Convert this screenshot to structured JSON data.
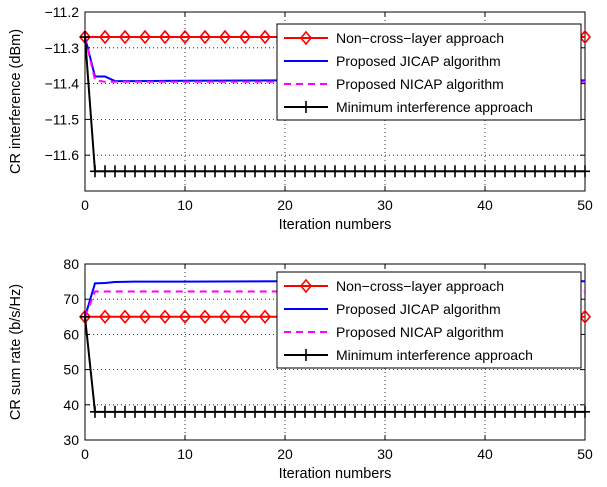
{
  "colors": {
    "non_cross_layer": "#ff0000",
    "jicap": "#0000ff",
    "nicap": "#ff00ff",
    "minimum": "#000000",
    "grid": "#000000"
  },
  "chart_data": [
    {
      "type": "line",
      "xlabel": "Iteration numbers",
      "ylabel": "CR interference (dBm)",
      "xlim": [
        0,
        50
      ],
      "ylim": [
        -11.7,
        -11.2
      ],
      "xticks": [
        0,
        10,
        20,
        30,
        40,
        50
      ],
      "xtick_labels": [
        "0",
        "10",
        "20",
        "30",
        "40",
        "50"
      ],
      "yticks": [
        -11.7,
        -11.6,
        -11.5,
        -11.4,
        -11.3,
        -11.2
      ],
      "ytick_labels": [
        "",
        "−11.6",
        "−11.5",
        "−11.4",
        "−11.3",
        "−11.2"
      ],
      "grid": true,
      "legend_position": "top-right",
      "series": [
        {
          "name": "Non−cross−layer approach",
          "color_key": "non_cross_layer",
          "style": "solid",
          "marker": "diamond",
          "x": [
            0,
            50
          ],
          "y": [
            -11.27,
            -11.27
          ],
          "marker_x": [
            0,
            2,
            4,
            6,
            8,
            10,
            12,
            14,
            16,
            18,
            50
          ]
        },
        {
          "name": "Proposed JICAP algorithm",
          "color_key": "jicap",
          "style": "solid",
          "marker": "none",
          "x": [
            0,
            1,
            2,
            3,
            5,
            10,
            20,
            30,
            40,
            50
          ],
          "y": [
            -11.27,
            -11.38,
            -11.38,
            -11.393,
            -11.393,
            -11.392,
            -11.391,
            -11.391,
            -11.391,
            -11.391
          ]
        },
        {
          "name": "Proposed NICAP algorithm",
          "color_key": "nicap",
          "style": "dashed",
          "marker": "none",
          "x": [
            0,
            1,
            2,
            3,
            50
          ],
          "y": [
            -11.27,
            -11.39,
            -11.395,
            -11.395,
            -11.395
          ]
        },
        {
          "name": "Minimum interference approach",
          "color_key": "minimum",
          "style": "solid",
          "marker": "plus",
          "x": [
            0,
            1,
            50
          ],
          "y": [
            -11.27,
            -11.645,
            -11.645
          ],
          "marker_x": [
            0,
            1,
            2,
            3,
            4,
            5,
            6,
            7,
            8,
            9,
            10,
            11,
            12,
            13,
            14,
            15,
            16,
            17,
            18,
            19,
            20,
            21,
            22,
            23,
            24,
            25,
            26,
            27,
            28,
            29,
            30,
            31,
            32,
            33,
            34,
            35,
            36,
            37,
            38,
            39,
            40,
            41,
            42,
            43,
            44,
            45,
            46,
            47,
            48,
            49,
            50
          ]
        }
      ]
    },
    {
      "type": "line",
      "xlabel": "Iteration numbers",
      "ylabel": "CR sum rate (b/s/Hz)",
      "xlim": [
        0,
        50
      ],
      "ylim": [
        30,
        80
      ],
      "xticks": [
        0,
        10,
        20,
        30,
        40,
        50
      ],
      "xtick_labels": [
        "0",
        "10",
        "20",
        "30",
        "40",
        "50"
      ],
      "yticks": [
        30,
        40,
        50,
        60,
        70,
        80
      ],
      "ytick_labels": [
        "30",
        "40",
        "50",
        "60",
        "70",
        "80"
      ],
      "grid": true,
      "legend_position": "top-right",
      "series": [
        {
          "name": "Non−cross−layer approach",
          "color_key": "non_cross_layer",
          "style": "solid",
          "marker": "diamond",
          "x": [
            0,
            50
          ],
          "y": [
            65,
            65
          ],
          "marker_x": [
            0,
            2,
            4,
            6,
            8,
            10,
            12,
            14,
            16,
            18,
            50
          ]
        },
        {
          "name": "Proposed JICAP algorithm",
          "color_key": "jicap",
          "style": "solid",
          "marker": "none",
          "x": [
            0,
            1,
            2,
            3,
            5,
            10,
            20,
            30,
            40,
            50
          ],
          "y": [
            65,
            74.5,
            74.6,
            74.9,
            75.0,
            75.0,
            75.1,
            75.1,
            75.1,
            75.1
          ]
        },
        {
          "name": "Proposed NICAP algorithm",
          "color_key": "nicap",
          "style": "dashed",
          "marker": "none",
          "x": [
            0,
            1,
            2,
            50
          ],
          "y": [
            65,
            72.2,
            72.2,
            72.2
          ]
        },
        {
          "name": "Minimum interference approach",
          "color_key": "minimum",
          "style": "solid",
          "marker": "plus",
          "x": [
            0,
            1,
            50
          ],
          "y": [
            65,
            38,
            38
          ],
          "marker_x": [
            0,
            1,
            2,
            3,
            4,
            5,
            6,
            7,
            8,
            9,
            10,
            11,
            12,
            13,
            14,
            15,
            16,
            17,
            18,
            19,
            20,
            21,
            22,
            23,
            24,
            25,
            26,
            27,
            28,
            29,
            30,
            31,
            32,
            33,
            34,
            35,
            36,
            37,
            38,
            39,
            40,
            41,
            42,
            43,
            44,
            45,
            46,
            47,
            48,
            49,
            50
          ]
        }
      ]
    }
  ]
}
